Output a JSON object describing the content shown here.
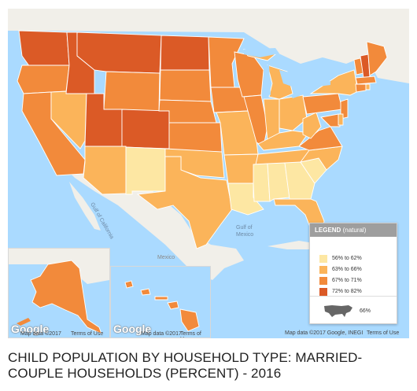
{
  "title": "CHILD POPULATION BY HOUSEHOLD TYPE: MARRIED-COUPLE HOUSEHOLDS (PERCENT) - 2016",
  "map_labels": {
    "ocean_1": "Gulf of",
    "ocean_2": "Mexico",
    "gulf_california": "Gulf of California",
    "mexico": "Mexico"
  },
  "attribution": {
    "google": "Google",
    "map_data": "Map data ©2017",
    "terms": "Terms of Use",
    "map_data_main": "Map data ©2017 Google, INEGI",
    "terms_main": "Terms of Use"
  },
  "legend": {
    "title": "LEGEND",
    "subtitle": "(natural)",
    "items": [
      {
        "label": "56% to 62%",
        "color": "#fde7a3"
      },
      {
        "label": "63% to 66%",
        "color": "#fbb45a"
      },
      {
        "label": "67% to 71%",
        "color": "#f28a3b"
      },
      {
        "label": "72% to 82%",
        "color": "#db5a26"
      }
    ],
    "national_value": "66%"
  },
  "colors": {
    "ocean": "#aadaff",
    "land": "#f1efe9",
    "border": "#ffffff"
  },
  "states": {
    "WA": "72% to 82%",
    "OR": "67% to 71%",
    "CA": "67% to 71%",
    "NV": "63% to 66%",
    "ID": "72% to 82%",
    "MT": "72% to 82%",
    "WY": "67% to 71%",
    "UT": "72% to 82%",
    "CO": "72% to 82%",
    "AZ": "63% to 66%",
    "NM": "56% to 62%",
    "ND": "72% to 82%",
    "SD": "67% to 71%",
    "NE": "67% to 71%",
    "KS": "67% to 71%",
    "OK": "63% to 66%",
    "TX": "63% to 66%",
    "MN": "67% to 71%",
    "IA": "67% to 71%",
    "MO": "63% to 66%",
    "AR": "63% to 66%",
    "LA": "56% to 62%",
    "WI": "67% to 71%",
    "IL": "67% to 71%",
    "IN": "63% to 66%",
    "MI": "63% to 66%",
    "OH": "63% to 66%",
    "KY": "63% to 66%",
    "TN": "63% to 66%",
    "MS": "56% to 62%",
    "AL": "56% to 62%",
    "GA": "56% to 62%",
    "FL": "63% to 66%",
    "SC": "56% to 62%",
    "NC": "63% to 66%",
    "VA": "67% to 71%",
    "WV": "63% to 66%",
    "PA": "67% to 71%",
    "NY": "63% to 66%",
    "VT": "67% to 71%",
    "NH": "72% to 82%",
    "ME": "67% to 71%",
    "MA": "67% to 71%",
    "CT": "67% to 71%",
    "NJ": "67% to 71%",
    "MD": "67% to 71%",
    "DE": "63% to 66%",
    "RI": "63% to 66%",
    "AK": "67% to 71%",
    "HI": "67% to 71%"
  }
}
